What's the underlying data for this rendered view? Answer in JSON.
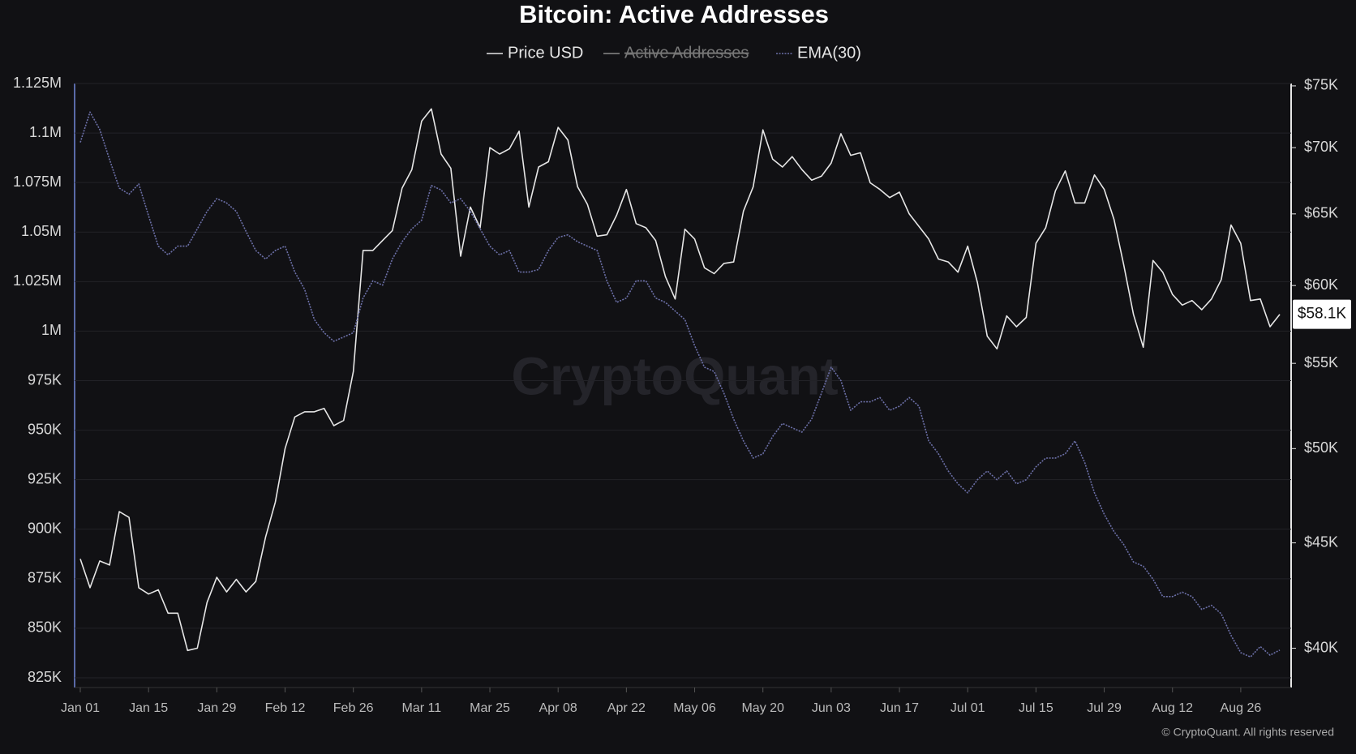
{
  "chart_data": {
    "type": "line",
    "title": "Bitcoin: Active Addresses",
    "watermark": "CryptoQuant",
    "credit": "© CryptoQuant. All rights reserved",
    "price_tag": "$58.1K",
    "x": [
      "Jan 01",
      "Jan 03",
      "Jan 05",
      "Jan 07",
      "Jan 09",
      "Jan 11",
      "Jan 13",
      "Jan 15",
      "Jan 17",
      "Jan 19",
      "Jan 21",
      "Jan 23",
      "Jan 25",
      "Jan 27",
      "Jan 29",
      "Jan 31",
      "Feb 02",
      "Feb 04",
      "Feb 06",
      "Feb 08",
      "Feb 10",
      "Feb 12",
      "Feb 14",
      "Feb 16",
      "Feb 18",
      "Feb 20",
      "Feb 22",
      "Feb 24",
      "Feb 26",
      "Feb 28",
      "Mar 01",
      "Mar 03",
      "Mar 05",
      "Mar 07",
      "Mar 09",
      "Mar 11",
      "Mar 13",
      "Mar 15",
      "Mar 17",
      "Mar 19",
      "Mar 21",
      "Mar 23",
      "Mar 25",
      "Mar 27",
      "Mar 29",
      "Mar 31",
      "Apr 02",
      "Apr 04",
      "Apr 06",
      "Apr 08",
      "Apr 10",
      "Apr 12",
      "Apr 14",
      "Apr 16",
      "Apr 18",
      "Apr 20",
      "Apr 22",
      "Apr 24",
      "Apr 26",
      "Apr 28",
      "Apr 30",
      "May 02",
      "May 04",
      "May 06",
      "May 08",
      "May 10",
      "May 12",
      "May 14",
      "May 16",
      "May 18",
      "May 20",
      "May 22",
      "May 24",
      "May 26",
      "May 28",
      "May 30",
      "Jun 01",
      "Jun 03",
      "Jun 05",
      "Jun 07",
      "Jun 09",
      "Jun 11",
      "Jun 13",
      "Jun 15",
      "Jun 17",
      "Jun 19",
      "Jun 21",
      "Jun 23",
      "Jun 25",
      "Jun 27",
      "Jun 29",
      "Jul 01",
      "Jul 03",
      "Jul 05",
      "Jul 07",
      "Jul 09",
      "Jul 11",
      "Jul 13",
      "Jul 15",
      "Jul 17",
      "Jul 19",
      "Jul 21",
      "Jul 23",
      "Jul 25",
      "Jul 27",
      "Jul 29",
      "Jul 31",
      "Aug 02",
      "Aug 04",
      "Aug 06",
      "Aug 08",
      "Aug 10",
      "Aug 12",
      "Aug 14",
      "Aug 16",
      "Aug 18",
      "Aug 20",
      "Aug 22",
      "Aug 24",
      "Aug 26",
      "Aug 28",
      "Aug 30",
      "Sep 01",
      "Sep 03"
    ],
    "xticks": [
      "Jan 01",
      "Jan 15",
      "Jan 29",
      "Feb 12",
      "Feb 26",
      "Mar 11",
      "Mar 25",
      "Apr 08",
      "Apr 22",
      "May 06",
      "May 20",
      "Jun 03",
      "Jun 17",
      "Jul 01",
      "Jul 15",
      "Jul 29",
      "Aug 12",
      "Aug 26"
    ],
    "series": [
      {
        "name": "Price USD",
        "color": "#e6e6e6",
        "axis": "y2",
        "values": [
          44200,
          42800,
          44100,
          43900,
          46600,
          46300,
          42800,
          42500,
          42700,
          41600,
          41600,
          39900,
          40000,
          42100,
          43300,
          42600,
          43200,
          42600,
          43100,
          45300,
          47100,
          50000,
          51800,
          52100,
          52100,
          52300,
          51300,
          51600,
          54500,
          62400,
          62400,
          63100,
          63800,
          66900,
          68300,
          72100,
          73100,
          69500,
          68400,
          62000,
          65500,
          64000,
          70000,
          69500,
          69900,
          71300,
          65500,
          68500,
          68900,
          71600,
          70600,
          67000,
          65700,
          63400,
          63500,
          64900,
          66800,
          64300,
          64000,
          63100,
          60600,
          59100,
          63900,
          63200,
          61200,
          60800,
          61500,
          61600,
          65200,
          67000,
          71400,
          69100,
          68500,
          69300,
          68300,
          67500,
          67800,
          68800,
          71100,
          69400,
          69600,
          67300,
          66800,
          66200,
          66600,
          65000,
          64100,
          63200,
          61800,
          61600,
          60900,
          62700,
          60200,
          56700,
          55900,
          58000,
          57300,
          57900,
          62900,
          64000,
          66700,
          68200,
          65800,
          65800,
          67900,
          66800,
          64600,
          61400,
          58100,
          56000,
          61700,
          60900,
          59400,
          58700,
          59000,
          58400,
          59100,
          60400,
          64200,
          62900,
          59000,
          59100,
          57300,
          58100
        ]
      },
      {
        "name": "Active Addresses",
        "color": "#8a8a8a",
        "hidden": true
      },
      {
        "name": "EMA(30)",
        "color": "#6c70a8",
        "dashed": true,
        "values": [
          1095300,
          1110600,
          1101800,
          1086600,
          1072200,
          1069100,
          1074300,
          1058200,
          1042900,
          1038500,
          1042900,
          1042900,
          1051600,
          1060400,
          1066900,
          1064700,
          1060400,
          1050300,
          1040700,
          1036400,
          1040700,
          1042900,
          1029800,
          1021100,
          1005800,
          999200,
          994900,
          997000,
          999200,
          1016700,
          1025400,
          1023200,
          1036400,
          1045100,
          1051600,
          1056000,
          1073500,
          1071300,
          1064700,
          1066900,
          1060400,
          1051600,
          1042900,
          1038500,
          1040700,
          1029800,
          1029800,
          1031100,
          1040700,
          1047300,
          1048600,
          1045100,
          1042900,
          1040700,
          1025400,
          1014500,
          1016700,
          1025400,
          1025400,
          1016700,
          1014500,
          1010100,
          1005800,
          992700,
          981800,
          979600,
          968700,
          955600,
          944600,
          935900,
          938100,
          946800,
          953400,
          951200,
          949000,
          955600,
          968700,
          981800,
          975000,
          960000,
          964300,
          964300,
          966500,
          960000,
          962100,
          966500,
          962100,
          944600,
          938100,
          929400,
          922900,
          918400,
          925000,
          929400,
          925000,
          929400,
          922900,
          925000,
          931500,
          935900,
          935900,
          938100,
          944600,
          933700,
          918400,
          907500,
          898800,
          892300,
          883500,
          881300,
          874800,
          866000,
          866000,
          868200,
          866000,
          859500,
          861600,
          857300,
          846400,
          837700,
          835500,
          840800,
          836400,
          839000
        ]
      }
    ],
    "ylim": [
      825000,
      1125000
    ],
    "yticks": [
      {
        "value": 825000,
        "label": "825K"
      },
      {
        "value": 850000,
        "label": "850K"
      },
      {
        "value": 875000,
        "label": "875K"
      },
      {
        "value": 900000,
        "label": "900K"
      },
      {
        "value": 925000,
        "label": "925K"
      },
      {
        "value": 950000,
        "label": "950K"
      },
      {
        "value": 975000,
        "label": "975K"
      },
      {
        "value": 1000000,
        "label": "1M"
      },
      {
        "value": 1025000,
        "label": "1.025M"
      },
      {
        "value": 1050000,
        "label": "1.05M"
      },
      {
        "value": 1075000,
        "label": "1.075M"
      },
      {
        "value": 1100000,
        "label": "1.1M"
      },
      {
        "value": 1125000,
        "label": "1.125M"
      }
    ],
    "y2lim": [
      38700,
      75200
    ],
    "y2log": true,
    "y2ticks": [
      {
        "value": 40000,
        "label": "$40K"
      },
      {
        "value": 45000,
        "label": "$45K"
      },
      {
        "value": 50000,
        "label": "$50K"
      },
      {
        "value": 55000,
        "label": "$55K"
      },
      {
        "value": 60000,
        "label": "$60K"
      },
      {
        "value": 65000,
        "label": "$65K"
      },
      {
        "value": 70000,
        "label": "$70K"
      },
      {
        "value": 75000,
        "label": "$75K"
      }
    ],
    "grid": true
  }
}
